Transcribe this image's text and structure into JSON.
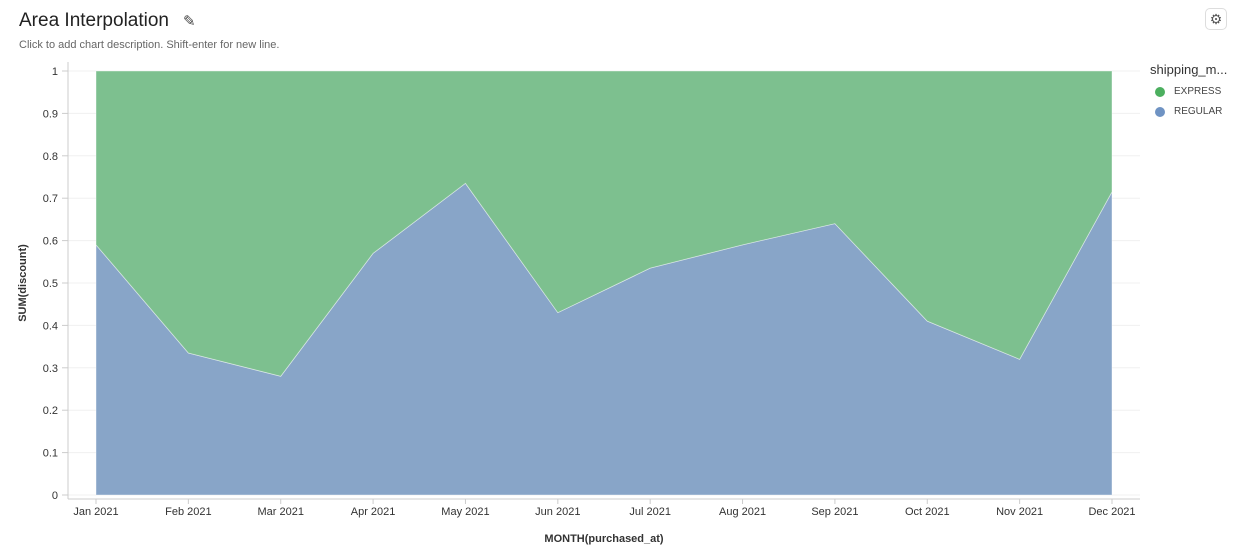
{
  "header": {
    "title": "Area Interpolation",
    "description": "Click to add chart description. Shift-enter for new line.",
    "edit_icon": "pencil-icon",
    "settings_icon": "gear-icon"
  },
  "chart_data": {
    "type": "area",
    "stacked": "normalized",
    "xlabel": "MONTH(purchased_at)",
    "ylabel": "SUM(discount)",
    "ylim": [
      0,
      1
    ],
    "yticks": [
      "0",
      "0.1",
      "0.2",
      "0.3",
      "0.4",
      "0.5",
      "0.6",
      "0.7",
      "0.8",
      "0.9",
      "1"
    ],
    "categories": [
      "Jan 2021",
      "Feb 2021",
      "Mar 2021",
      "Apr 2021",
      "May 2021",
      "Jun 2021",
      "Jul 2021",
      "Aug 2021",
      "Sep 2021",
      "Oct 2021",
      "Nov 2021",
      "Dec 2021"
    ],
    "legend_title": "shipping_m...",
    "legend_position": "right",
    "grid": true,
    "series": [
      {
        "name": "REGULAR",
        "color": "#88a5c8",
        "values": [
          0.59,
          0.335,
          0.28,
          0.57,
          0.735,
          0.43,
          0.535,
          0.59,
          0.64,
          0.41,
          0.32,
          0.715
        ]
      },
      {
        "name": "EXPRESS",
        "color": "#7dc08f",
        "values": [
          0.41,
          0.665,
          0.72,
          0.43,
          0.265,
          0.57,
          0.465,
          0.41,
          0.36,
          0.59,
          0.68,
          0.285
        ]
      }
    ],
    "legend_colors": {
      "EXPRESS": "#4caf5f",
      "REGULAR": "#6f93c3"
    }
  }
}
